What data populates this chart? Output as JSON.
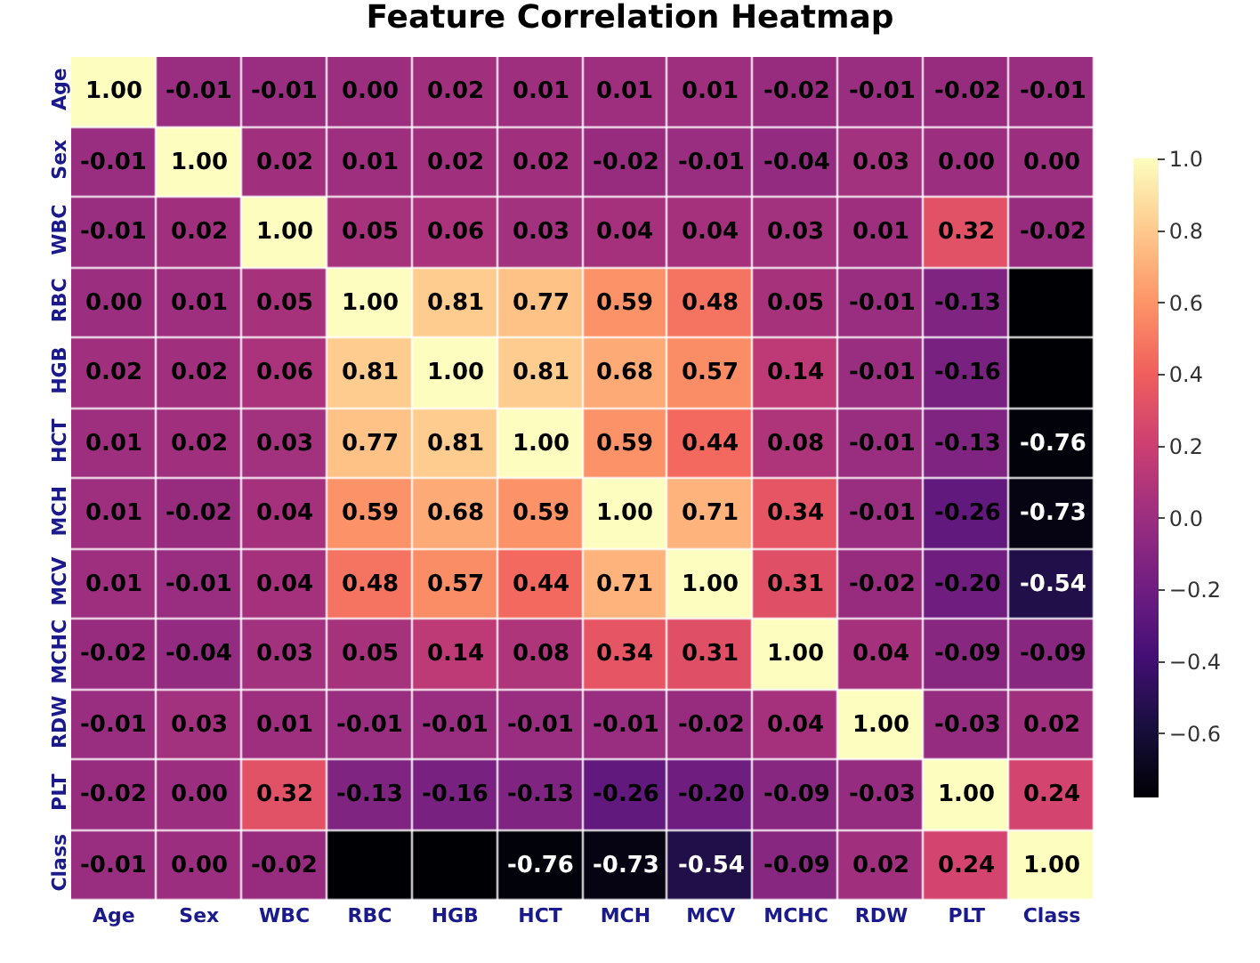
{
  "chart_data": {
    "type": "heatmap",
    "title": "Feature Correlation Heatmap",
    "categories": [
      "Age",
      "Sex",
      "WBC",
      "RBC",
      "HGB",
      "HCT",
      "MCH",
      "MCV",
      "MCHC",
      "RDW",
      "PLT",
      "Class"
    ],
    "y_categories": [
      "Age",
      "Sex",
      "WBC",
      "RBC",
      "HGB",
      "HCT",
      "MCH",
      "MCV",
      "MCHC",
      "RDW",
      "PLT",
      "Class"
    ],
    "cells": [
      [
        1.0,
        -0.01,
        -0.01,
        0.0,
        0.02,
        0.01,
        0.01,
        0.01,
        -0.02,
        -0.01,
        -0.02,
        -0.01
      ],
      [
        -0.01,
        1.0,
        0.02,
        0.01,
        0.02,
        0.02,
        -0.02,
        -0.01,
        -0.04,
        0.03,
        0.0,
        0.0
      ],
      [
        -0.01,
        0.02,
        1.0,
        0.05,
        0.06,
        0.03,
        0.04,
        0.04,
        0.03,
        0.01,
        0.32,
        -0.02
      ],
      [
        0.0,
        0.01,
        0.05,
        1.0,
        0.81,
        0.77,
        0.59,
        0.48,
        0.05,
        -0.01,
        -0.13,
        -0.78
      ],
      [
        0.02,
        0.02,
        0.06,
        0.81,
        1.0,
        0.81,
        0.68,
        0.57,
        0.14,
        -0.01,
        -0.16,
        -0.78
      ],
      [
        0.01,
        0.02,
        0.03,
        0.77,
        0.81,
        1.0,
        0.59,
        0.44,
        0.08,
        -0.01,
        -0.13,
        -0.76
      ],
      [
        0.01,
        -0.02,
        0.04,
        0.59,
        0.68,
        0.59,
        1.0,
        0.71,
        0.34,
        -0.01,
        -0.26,
        -0.73
      ],
      [
        0.01,
        -0.01,
        0.04,
        0.48,
        0.57,
        0.44,
        0.71,
        1.0,
        0.31,
        -0.02,
        -0.2,
        -0.54
      ],
      [
        -0.02,
        -0.04,
        0.03,
        0.05,
        0.14,
        0.08,
        0.34,
        0.31,
        1.0,
        0.04,
        -0.09,
        -0.09
      ],
      [
        -0.01,
        0.03,
        0.01,
        -0.01,
        -0.01,
        -0.01,
        -0.01,
        -0.02,
        0.04,
        1.0,
        -0.03,
        0.02
      ],
      [
        -0.02,
        0.0,
        0.32,
        -0.13,
        -0.16,
        -0.13,
        -0.26,
        -0.2,
        -0.09,
        -0.03,
        1.0,
        0.24
      ],
      [
        -0.01,
        0.0,
        -0.02,
        -0.78,
        -0.78,
        -0.76,
        -0.73,
        -0.54,
        -0.09,
        0.02,
        0.24,
        1.0
      ]
    ],
    "cell_labels": [
      [
        "1.00",
        "-0.01",
        "-0.01",
        "0.00",
        "0.02",
        "0.01",
        "0.01",
        "0.01",
        "-0.02",
        "-0.01",
        "-0.02",
        "-0.01"
      ],
      [
        "-0.01",
        "1.00",
        "0.02",
        "0.01",
        "0.02",
        "0.02",
        "-0.02",
        "-0.01",
        "-0.04",
        "0.03",
        "0.00",
        "0.00"
      ],
      [
        "-0.01",
        "0.02",
        "1.00",
        "0.05",
        "0.06",
        "0.03",
        "0.04",
        "0.04",
        "0.03",
        "0.01",
        "0.32",
        "-0.02"
      ],
      [
        "0.00",
        "0.01",
        "0.05",
        "1.00",
        "0.81",
        "0.77",
        "0.59",
        "0.48",
        "0.05",
        "-0.01",
        "-0.13",
        null
      ],
      [
        "0.02",
        "0.02",
        "0.06",
        "0.81",
        "1.00",
        "0.81",
        "0.68",
        "0.57",
        "0.14",
        "-0.01",
        "-0.16",
        null
      ],
      [
        "0.01",
        "0.02",
        "0.03",
        "0.77",
        "0.81",
        "1.00",
        "0.59",
        "0.44",
        "0.08",
        "-0.01",
        "-0.13",
        "-0.76"
      ],
      [
        "0.01",
        "-0.02",
        "0.04",
        "0.59",
        "0.68",
        "0.59",
        "1.00",
        "0.71",
        "0.34",
        "-0.01",
        "-0.26",
        "-0.73"
      ],
      [
        "0.01",
        "-0.01",
        "0.04",
        "0.48",
        "0.57",
        "0.44",
        "0.71",
        "1.00",
        "0.31",
        "-0.02",
        "-0.20",
        "-0.54"
      ],
      [
        "-0.02",
        "-0.04",
        "0.03",
        "0.05",
        "0.14",
        "0.08",
        "0.34",
        "0.31",
        "1.00",
        "0.04",
        "-0.09",
        "-0.09"
      ],
      [
        "-0.01",
        "0.03",
        "0.01",
        "-0.01",
        "-0.01",
        "-0.01",
        "-0.01",
        "-0.02",
        "0.04",
        "1.00",
        "-0.03",
        "0.02"
      ],
      [
        "-0.02",
        "0.00",
        "0.32",
        "-0.13",
        "-0.16",
        "-0.13",
        "-0.26",
        "-0.20",
        "-0.09",
        "-0.03",
        "1.00",
        "0.24"
      ],
      [
        "-0.01",
        "0.00",
        "-0.02",
        null,
        null,
        "-0.76",
        "-0.73",
        "-0.54",
        "-0.09",
        "0.02",
        "0.24",
        "1.00"
      ]
    ],
    "clim": [
      -0.78,
      1.0
    ],
    "cticks": [
      {
        "value": 1.0,
        "label": "1.0"
      },
      {
        "value": 0.8,
        "label": "0.8"
      },
      {
        "value": 0.6,
        "label": "0.6"
      },
      {
        "value": 0.4,
        "label": "0.4"
      },
      {
        "value": 0.2,
        "label": "0.2"
      },
      {
        "value": 0.0,
        "label": "0.0"
      },
      {
        "value": -0.2,
        "label": "−0.2"
      },
      {
        "value": -0.4,
        "label": "−0.4"
      },
      {
        "value": -0.6,
        "label": "−0.6"
      }
    ]
  }
}
